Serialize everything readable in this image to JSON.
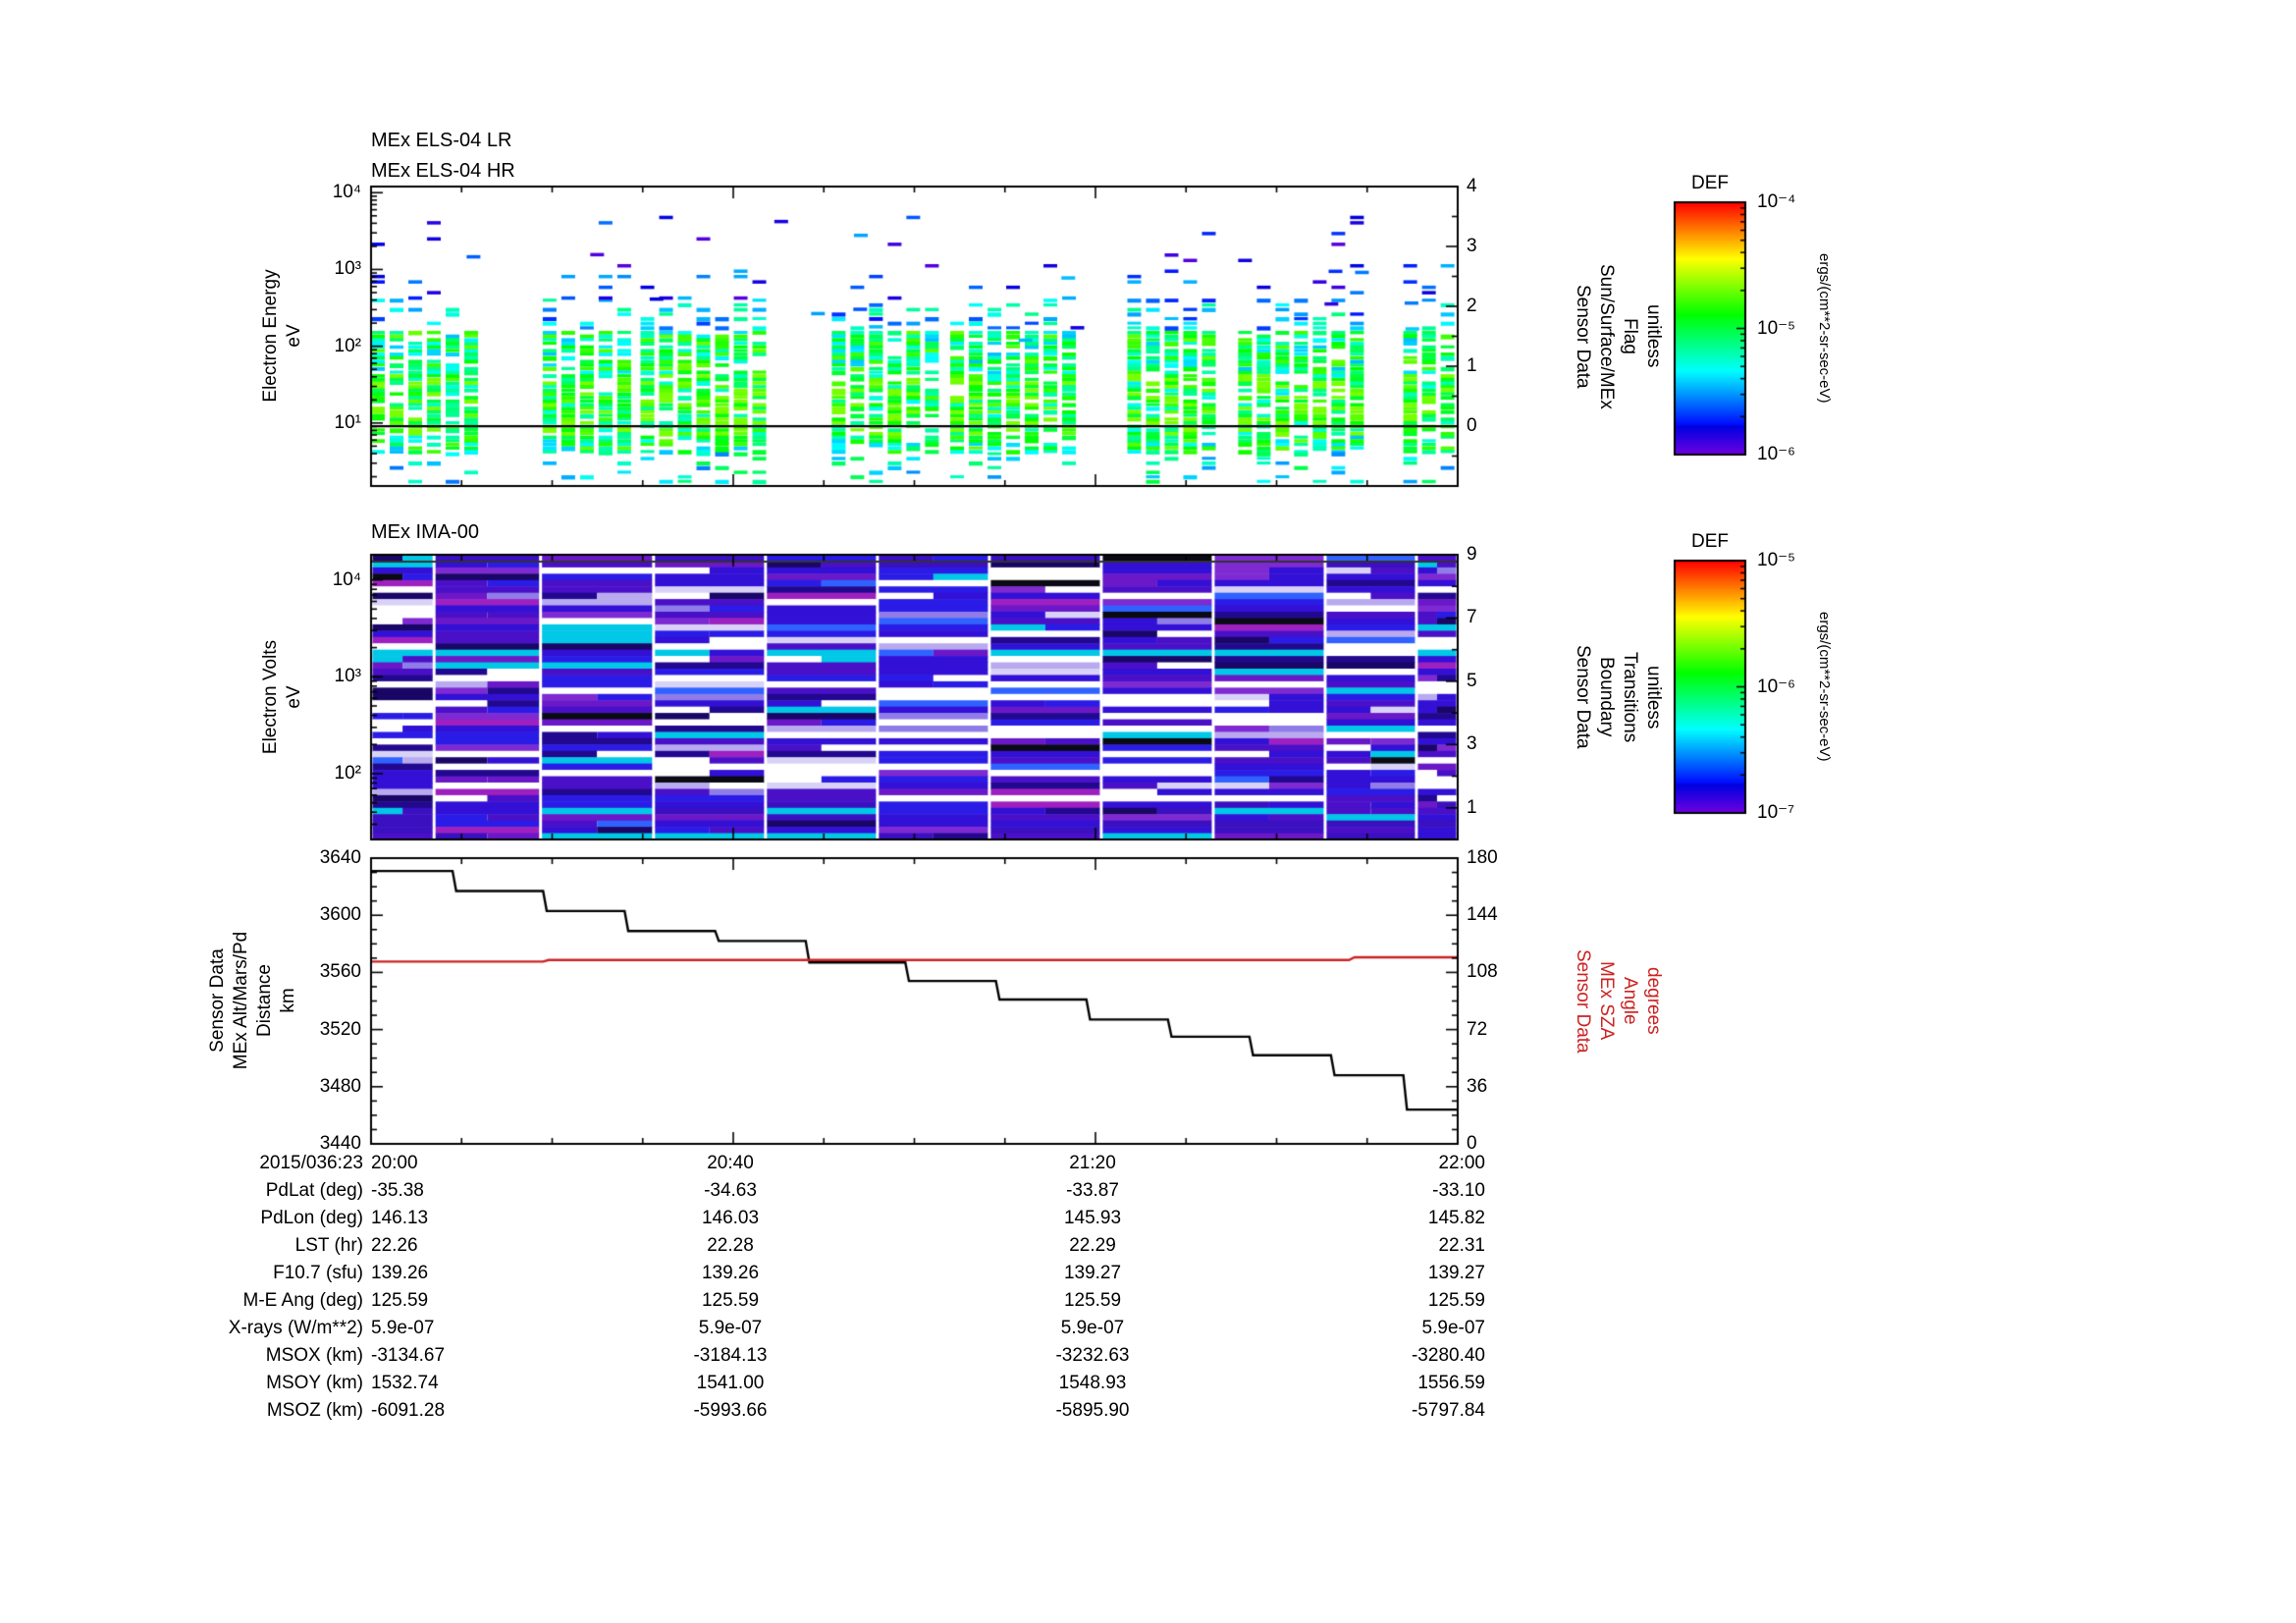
{
  "panels": {
    "els": {
      "title_lines": [
        "MEx ELS-04 LR",
        "MEx ELS-04 HR"
      ],
      "ylabel_lines": [
        "Electron Energy",
        "eV"
      ],
      "yticks": [
        "10⁴",
        "10³",
        "10²",
        "10¹"
      ],
      "right_label_lines": [
        "Sensor Data",
        "Sun/Surface/MEx",
        "Flag",
        "unitless"
      ],
      "right_ticks": [
        "4",
        "3",
        "2",
        "1",
        "0"
      ]
    },
    "ima": {
      "title": "MEx IMA-00",
      "ylabel_lines": [
        "Electron Volts",
        "eV"
      ],
      "yticks": [
        "10⁴",
        "10³",
        "10²"
      ],
      "right_label_lines": [
        "Sensor Data",
        "Boundary",
        "Transitions",
        "unitless"
      ],
      "right_ticks": [
        "9",
        "7",
        "5",
        "3",
        "1"
      ]
    },
    "traj": {
      "ylabel_lines": [
        "Sensor Data",
        "MEx Alt/Mars/Pd",
        "Distance",
        "km"
      ],
      "yticks": [
        "3640",
        "3600",
        "3560",
        "3520",
        "3480",
        "3440"
      ],
      "right_label_lines": [
        "Sensor Data",
        "MEx SZA",
        "Angle",
        "degrees"
      ],
      "right_ticks": [
        "180",
        "144",
        "108",
        "72",
        "36",
        "0"
      ],
      "right_color": "#cc2222"
    }
  },
  "colorbars": [
    {
      "title": "DEF",
      "ticks": [
        "10⁻⁴",
        "10⁻⁵",
        "10⁻⁶"
      ],
      "unit": "ergs/(cm**2-sr-sec-eV)"
    },
    {
      "title": "DEF",
      "ticks": [
        "10⁻⁵",
        "10⁻⁶",
        "10⁻⁷"
      ],
      "unit": "ergs/(cm**2-sr-sec-eV)"
    }
  ],
  "table": {
    "date_label": "2015/036:23",
    "columns": [
      "20:00",
      "20:40",
      "21:20",
      "22:00"
    ],
    "rows": [
      {
        "label": "PdLat (deg)",
        "values": [
          "-35.38",
          "-34.63",
          "-33.87",
          "-33.10"
        ]
      },
      {
        "label": "PdLon (deg)",
        "values": [
          "146.13",
          "146.03",
          "145.93",
          "145.82"
        ]
      },
      {
        "label": "LST (hr)",
        "values": [
          "22.26",
          "22.28",
          "22.29",
          "22.31"
        ]
      },
      {
        "label": "F10.7 (sfu)",
        "values": [
          "139.26",
          "139.26",
          "139.27",
          "139.27"
        ]
      },
      {
        "label": "M-E Ang (deg)",
        "values": [
          "125.59",
          "125.59",
          "125.59",
          "125.59"
        ]
      },
      {
        "label": "X-rays (W/m**2)",
        "values": [
          "5.9e-07",
          "5.9e-07",
          "5.9e-07",
          "5.9e-07"
        ]
      },
      {
        "label": "MSOX (km)",
        "values": [
          "-3134.67",
          "-3184.13",
          "-3232.63",
          "-3280.40"
        ]
      },
      {
        "label": "MSOY (km)",
        "values": [
          "1532.74",
          "1541.00",
          "1548.93",
          "1556.59"
        ]
      },
      {
        "label": "MSOZ (km)",
        "values": [
          "-6091.28",
          "-5993.66",
          "-5895.90",
          "-5797.84"
        ]
      }
    ]
  },
  "chart_data": [
    {
      "id": "els_spectrogram",
      "type": "heatmap",
      "title": "MEx ELS-04 LR / MEx ELS-04 HR",
      "ylabel": "Electron Energy (eV)",
      "y_scale": "log",
      "y_range_ev": [
        1.5,
        12000
      ],
      "y_tick_values_ev": [
        10000,
        1000,
        100,
        10
      ],
      "x_tick_labels": [
        "20:00",
        "20:40",
        "21:20",
        "22:00"
      ],
      "color_scale": {
        "label": "DEF",
        "units": "ergs/(cm**2-sr-sec-eV)",
        "log_min": -6,
        "log_max": -4
      },
      "right_axis": {
        "label": "Sensor Data Sun/Surface/MEx Flag (unitless)",
        "range": [
          -1,
          4
        ],
        "tick_values": [
          4,
          3,
          2,
          1,
          0
        ],
        "flag_line_value": 0
      },
      "summary": "Bursty vertical columns of electron flux between ~3 and 200 eV at 1e-5.4 to 1e-4.7 DEF (green to yellow-green), sparser dashes 200-5000 eV near 1e-5.9 (blue); Sun/Surface/MEx flag constant at 0 (horizontal black line)",
      "render": {
        "seed": 1234,
        "groups": [
          [
            0.0,
            0.105
          ],
          [
            0.158,
            0.24
          ],
          [
            0.248,
            0.378
          ],
          [
            0.424,
            0.528
          ],
          [
            0.533,
            0.663
          ],
          [
            0.696,
            0.784
          ],
          [
            0.798,
            0.92
          ],
          [
            0.95,
            1.0
          ]
        ]
      }
    },
    {
      "id": "ima_spectrogram",
      "type": "heatmap",
      "title": "MEx IMA-00",
      "ylabel": "Electron Volts (eV)",
      "y_scale": "log",
      "y_range_ev": [
        21,
        18000
      ],
      "y_tick_values_ev": [
        10000,
        1000,
        100
      ],
      "x_tick_labels": [
        "20:00",
        "20:40",
        "21:20",
        "22:00"
      ],
      "color_scale": {
        "label": "DEF",
        "units": "ergs/(cm**2-sr-sec-eV)",
        "log_min": -7,
        "log_max": -5
      },
      "right_axis": {
        "label": "Sensor Data Boundary Transitions (unitless)",
        "range": [
          0,
          9
        ],
        "tick_values": [
          9,
          7,
          5,
          3,
          1
        ]
      },
      "summary": "Blocky low-flux ion spectrogram in ~11 time blocks, mostly 1e-7 to 1e-6.3 DEF (blue/violet/purple rows) with white data-gap rows and occasional cyan streaks; thin dark line near top",
      "render": {
        "seed": 421,
        "block_bounds": [
          0,
          0.058,
          0.156,
          0.26,
          0.363,
          0.466,
          0.569,
          0.672,
          0.775,
          0.878,
          0.962,
          1.0
        ],
        "palette": [
          "#3310d6",
          "#2a1ce6",
          "#4a10c8",
          "#6a18c8",
          "#7e2ad2",
          "#22088f",
          "#190666",
          "#b9aaf0",
          "#8f7ce8",
          "#00c8e6",
          "#2f62ff",
          "#0a0a14",
          "#ffffff",
          "#d9d2f7",
          "#9e20c0"
        ],
        "weights": [
          0.2,
          0.12,
          0.12,
          0.08,
          0.05,
          0.07,
          0.04,
          0.04,
          0.03,
          0.025,
          0.035,
          0.02,
          0.13,
          0.03,
          0.02
        ]
      }
    },
    {
      "id": "trajectory",
      "type": "line",
      "x_minutes_range": [
        0,
        120
      ],
      "x_start_label": "20:00",
      "x_end_label": "22:00",
      "x_tick_labels": [
        "20:00",
        "20:40",
        "21:20",
        "22:00"
      ],
      "left_axis_label": "Sensor Data MEx Alt/Mars/Pd Distance (km)",
      "right_axis_label": "Sensor Data MEx SZA Angle (degrees)",
      "left_range": [
        3440,
        3640
      ],
      "right_range": [
        0,
        180
      ],
      "series": [
        {
          "name": "MEx Alt/Mars/Pd Distance",
          "units": "km",
          "color": "#000000",
          "axis": "left",
          "points": [
            [
              0,
              3631
            ],
            [
              9,
              3631
            ],
            [
              9.4,
              3617
            ],
            [
              19,
              3617
            ],
            [
              19.4,
              3603
            ],
            [
              28,
              3603
            ],
            [
              28.4,
              3589
            ],
            [
              38,
              3589
            ],
            [
              38.4,
              3582
            ],
            [
              48,
              3582
            ],
            [
              48.4,
              3567
            ],
            [
              59,
              3567
            ],
            [
              59.4,
              3554
            ],
            [
              69,
              3554
            ],
            [
              69.4,
              3541
            ],
            [
              79,
              3541
            ],
            [
              79.4,
              3527
            ],
            [
              88,
              3527
            ],
            [
              88.4,
              3515
            ],
            [
              97,
              3515
            ],
            [
              97.4,
              3502
            ],
            [
              106,
              3502
            ],
            [
              106.4,
              3488
            ],
            [
              114,
              3488
            ],
            [
              114.4,
              3464
            ],
            [
              120,
              3464
            ]
          ]
        },
        {
          "name": "MEx SZA Angle",
          "units": "degrees",
          "color": "#cc2222",
          "axis": "right",
          "points": [
            [
              0,
              114.8
            ],
            [
              19,
              114.8
            ],
            [
              19.6,
              115.8
            ],
            [
              108,
              115.8
            ],
            [
              108.6,
              117.5
            ],
            [
              120,
              117.5
            ]
          ]
        }
      ]
    }
  ]
}
